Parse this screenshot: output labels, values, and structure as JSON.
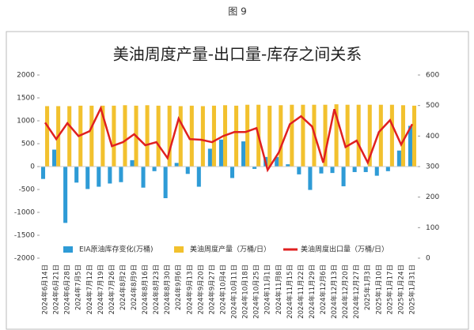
{
  "caption": "图 9",
  "chart_data": {
    "type": "bar",
    "title": "美油周度产量-出口量-库存之间关系",
    "categories": [
      "2024年6月14日",
      "2024年6月21日",
      "2024年6月28日",
      "2024年7月5日",
      "2024年7月12日",
      "2024年7月19日",
      "2024年7月26日",
      "2024年8月2日",
      "2024年8月9日",
      "2024年8月16日",
      "2024年8月23日",
      "2024年8月30日",
      "2024年9月6日",
      "2024年9月13日",
      "2024年9月20日",
      "2024年9月27日",
      "2024年10月4日",
      "2024年10月11日",
      "2024年10月18日",
      "2024年10月25日",
      "2024年11月1日",
      "2024年11月8日",
      "2024年11月15日",
      "2024年11月22日",
      "2024年11月29日",
      "2024年12月6日",
      "2024年12月13日",
      "2024年12月20日",
      "2024年12月27日",
      "2025年1月3日",
      "2025年1月10日",
      "2025年1月17日",
      "2025年1月24日",
      "2025年1月31日"
    ],
    "series": [
      {
        "name": "EIA原油库存变化(万桶)",
        "type": "bar",
        "color": "#2e9bd6",
        "axis": "y",
        "values": [
          -270,
          370,
          -1230,
          -350,
          -490,
          -440,
          -370,
          -340,
          140,
          -460,
          -100,
          -690,
          80,
          -160,
          -440,
          390,
          590,
          -250,
          550,
          -50,
          210,
          210,
          50,
          -170,
          -510,
          -150,
          -140,
          -430,
          -120,
          -120,
          -200,
          -100,
          350,
          890
        ]
      },
      {
        "name": "美油周度产量（万桶/日）",
        "type": "bar",
        "color": "#f2c12e",
        "axis": "y",
        "values": [
          1320,
          1320,
          1320,
          1330,
          1330,
          1330,
          1330,
          1340,
          1330,
          1340,
          1330,
          1330,
          1320,
          1330,
          1320,
          1330,
          1340,
          1330,
          1350,
          1350,
          1330,
          1340,
          1350,
          1350,
          1350,
          1350,
          1360,
          1350,
          1350,
          1350,
          1350,
          1350,
          1340,
          1330
        ]
      },
      {
        "name": "美油周度出口量（万桶/日）",
        "type": "line",
        "color": "#e02020",
        "axis": "y2",
        "values": [
          444,
          390,
          442,
          400,
          416,
          491,
          367,
          380,
          406,
          370,
          380,
          328,
          457,
          390,
          388,
          380,
          400,
          413,
          413,
          426,
          289,
          346,
          439,
          465,
          431,
          313,
          488,
          364,
          385,
          313,
          413,
          452,
          372,
          439
        ]
      }
    ],
    "ylim": [
      -2000,
      2000
    ],
    "yticks": [
      -2000,
      -1500,
      -1000,
      -500,
      0,
      500,
      1000,
      1500,
      2000
    ],
    "y2lim": [
      0,
      600
    ],
    "y2ticks": [
      0,
      100,
      200,
      300,
      400,
      500,
      600
    ],
    "legend": "bottom"
  }
}
